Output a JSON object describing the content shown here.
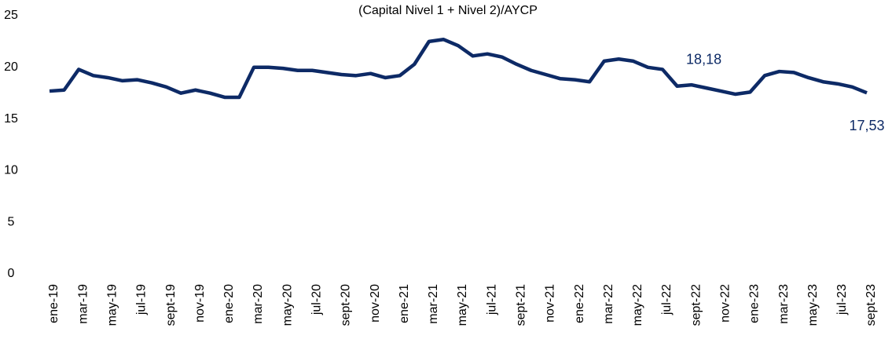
{
  "chart_data": {
    "type": "line",
    "title": "(Capital Nivel 1 + Nivel 2)/AYCP",
    "categories": [
      "ene-19",
      null,
      "mar-19",
      null,
      "may-19",
      null,
      "jul-19",
      null,
      "sept-19",
      null,
      "nov-19",
      null,
      "ene-20",
      null,
      "mar-20",
      null,
      "may-20",
      null,
      "jul-20",
      null,
      "sept-20",
      null,
      "nov-20",
      null,
      "ene-21",
      null,
      "mar-21",
      null,
      "may-21",
      null,
      "jul-21",
      null,
      "sept-21",
      null,
      "nov-21",
      null,
      "ene-22",
      null,
      "mar-22",
      null,
      "may-22",
      null,
      "jul-22",
      null,
      "sept-22",
      null,
      "nov-22",
      null,
      "ene-23",
      null,
      "mar-23",
      null,
      "may-23",
      null,
      "jul-23",
      null,
      "sept-23"
    ],
    "values": [
      17.7,
      17.8,
      19.8,
      19.2,
      19.0,
      18.7,
      18.8,
      18.5,
      18.1,
      17.5,
      17.8,
      17.5,
      17.1,
      17.1,
      20.0,
      20.0,
      19.9,
      19.7,
      19.7,
      19.5,
      19.3,
      19.2,
      19.4,
      19.0,
      19.2,
      20.3,
      22.5,
      22.7,
      22.1,
      21.1,
      21.3,
      21.0,
      20.3,
      19.7,
      19.3,
      18.9,
      18.8,
      18.6,
      20.6,
      20.8,
      20.6,
      20.0,
      19.8,
      18.18,
      18.3,
      18.0,
      17.7,
      17.4,
      17.6,
      19.2,
      19.6,
      19.5,
      19.0,
      18.6,
      18.4,
      18.1,
      17.53
    ],
    "value_labels": [
      null,
      null,
      null,
      null,
      null,
      null,
      null,
      null,
      null,
      null,
      null,
      null,
      null,
      null,
      null,
      null,
      null,
      null,
      null,
      null,
      null,
      null,
      null,
      null,
      null,
      null,
      null,
      null,
      null,
      null,
      null,
      null,
      null,
      null,
      null,
      null,
      null,
      null,
      null,
      null,
      null,
      null,
      null,
      "18,18",
      null,
      null,
      null,
      null,
      null,
      null,
      null,
      null,
      null,
      null,
      null,
      null,
      "17,53"
    ],
    "color": "#0d2a66",
    "ylim": [
      0,
      25
    ],
    "yticks": [
      0,
      5,
      10,
      15,
      20,
      25
    ],
    "grid": false
  }
}
